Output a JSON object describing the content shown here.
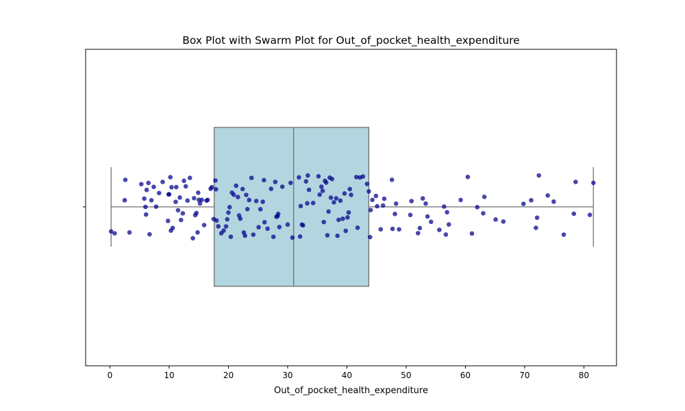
{
  "chart_data": {
    "type": "box",
    "title": "Box Plot with Swarm Plot for Out_of_pocket_health_expenditure",
    "xlabel": "Out_of_pocket_health_expenditure",
    "ylabel": "",
    "xlim": [
      -4.1,
      85.5
    ],
    "xticks": [
      0,
      10,
      20,
      30,
      40,
      50,
      60,
      70,
      80
    ],
    "box": {
      "whisker_low": 0.2,
      "q1": 17.6,
      "median": 31.0,
      "q3": 43.7,
      "whisker_high": 81.6,
      "fill_color": "#b3d5e0",
      "edge_color": "#6f6f6f"
    },
    "points": {
      "color": "#00008b",
      "values": [
        0.2,
        0.8,
        2.6,
        2.5,
        3.3,
        5.3,
        5.8,
        6.0,
        6.1,
        6.2,
        6.5,
        6.7,
        7.0,
        7.4,
        7.8,
        8.3,
        8.9,
        9.8,
        9.9,
        10.0,
        10.2,
        10.3,
        10.4,
        10.6,
        11.1,
        11.2,
        11.5,
        11.8,
        12.0,
        12.3,
        12.5,
        12.8,
        13.1,
        13.5,
        14.0,
        14.2,
        14.4,
        14.6,
        14.8,
        14.9,
        15.0,
        15.2,
        15.5,
        15.9,
        16.3,
        16.5,
        17.0,
        17.2,
        17.5,
        17.8,
        17.9,
        18.0,
        18.3,
        18.8,
        19.2,
        19.6,
        19.8,
        20.0,
        20.2,
        20.4,
        20.6,
        20.9,
        21.3,
        21.6,
        21.8,
        22.0,
        22.4,
        22.6,
        22.8,
        23.0,
        23.2,
        23.5,
        23.9,
        24.2,
        24.7,
        25.1,
        25.4,
        25.8,
        26.0,
        26.1,
        26.6,
        27.2,
        27.6,
        27.9,
        28.1,
        28.3,
        28.4,
        28.6,
        29.1,
        30.0,
        30.5,
        30.8,
        31.9,
        32.1,
        32.2,
        32.4,
        32.6,
        33.1,
        33.3,
        33.4,
        33.6,
        34.3,
        35.2,
        35.4,
        35.7,
        35.9,
        36.1,
        36.3,
        36.5,
        36.7,
        36.9,
        37.1,
        37.3,
        37.5,
        37.8,
        38.2,
        38.4,
        38.6,
        38.9,
        39.3,
        39.6,
        39.8,
        40.1,
        40.3,
        40.5,
        40.7,
        41.6,
        41.8,
        42.2,
        42.7,
        43.4,
        43.7,
        43.9,
        44.0,
        44.3,
        44.9,
        45.1,
        45.7,
        46.1,
        46.3,
        47.6,
        47.7,
        48.1,
        48.3,
        48.8,
        50.7,
        50.9,
        52.0,
        52.3,
        52.8,
        53.3,
        53.6,
        54.2,
        55.6,
        56.4,
        56.7,
        56.9,
        57.2,
        59.2,
        60.4,
        61.1,
        62.0,
        63.0,
        63.2,
        65.1,
        66.4,
        69.8,
        71.1,
        71.9,
        72.1,
        72.4,
        73.9,
        74.9,
        76.6,
        78.3,
        78.6,
        81.0,
        81.6
      ]
    }
  }
}
